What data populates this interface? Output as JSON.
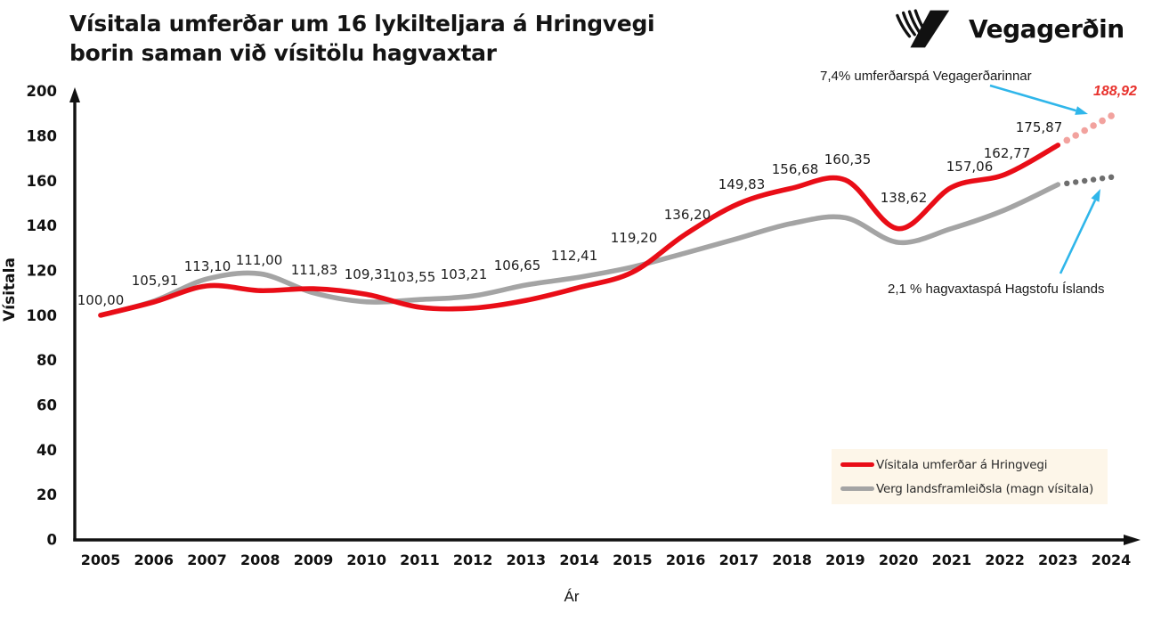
{
  "header": {
    "title_line1": "Vísitala umferðar um 16 lykilteljara á Hringvegi",
    "title_line2": "borin saman við vísitölu hagvaxtar",
    "logo_text": "Vegagerðin"
  },
  "annotations": {
    "traffic_forecast_label": "7,4% umferðarspá Vegagerðarinnar",
    "traffic_forecast_value": "188,92",
    "gdp_forecast_label": "2,1 % hagvaxtaspá Hagstofu Íslands",
    "arrow_color": "#2fb6ea"
  },
  "chart_data": {
    "type": "line",
    "title": "Vísitala umferðar um 16 lykilteljara á Hringvegi borin saman við vísitölu hagvaxtar",
    "xlabel": "Ár",
    "ylabel": "Vísitala",
    "x": [
      2005,
      2006,
      2007,
      2008,
      2009,
      2010,
      2011,
      2012,
      2013,
      2014,
      2015,
      2016,
      2017,
      2018,
      2019,
      2020,
      2021,
      2022,
      2023
    ],
    "x_forecast": 2024,
    "xticks": [
      2005,
      2006,
      2007,
      2008,
      2009,
      2010,
      2011,
      2012,
      2013,
      2014,
      2015,
      2016,
      2017,
      2018,
      2019,
      2020,
      2021,
      2022,
      2023,
      2024
    ],
    "ylim": [
      0,
      200
    ],
    "ytick_step": 20,
    "grid": false,
    "legend_position": "bottom-right",
    "legend_background": "#fdf6e9",
    "series": [
      {
        "name": "Vísitala umferðar á Hringvegi",
        "color": "#e90d17",
        "forecast_color": "#f2a29e",
        "values": [
          100.0,
          105.91,
          113.1,
          111.0,
          111.83,
          109.31,
          103.55,
          103.21,
          106.65,
          112.41,
          119.2,
          136.2,
          149.83,
          156.68,
          160.35,
          138.62,
          157.06,
          162.77,
          175.87
        ],
        "point_labels": [
          "100,00",
          "105,91",
          "113,10",
          "111,00",
          "111,83",
          "109,31",
          "103,55",
          "103,21",
          "106,65",
          "112,41",
          "119,20",
          "136,20",
          "149,83",
          "156,68",
          "160,35",
          "138,62",
          "157,06",
          "162,77",
          "175,87"
        ],
        "forecast_value": 188.92,
        "forecast_label": "188,92"
      },
      {
        "name": "Verg landsframleiðsla (magn vísitala)",
        "color": "#a4a4a4",
        "forecast_color": "#6e6e6e",
        "values": [
          100.0,
          106.3,
          116.2,
          118.5,
          110.0,
          106.0,
          107.0,
          108.6,
          113.5,
          117.0,
          121.5,
          127.8,
          134.4,
          141.0,
          143.5,
          132.5,
          138.7,
          147.0,
          158.3
        ],
        "forecast_value": 161.6
      }
    ]
  }
}
